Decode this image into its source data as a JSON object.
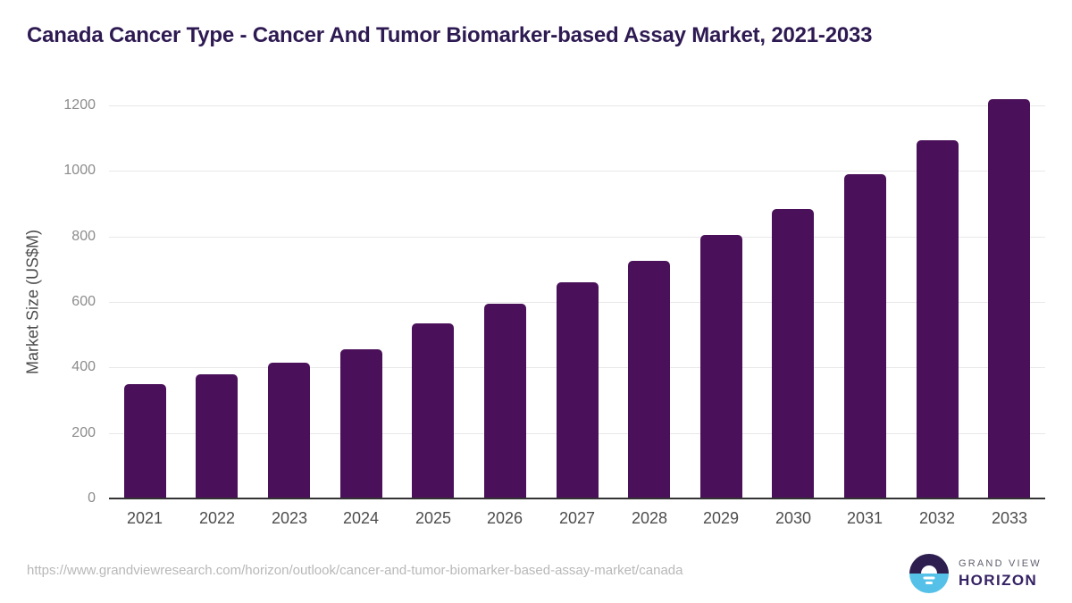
{
  "header": {
    "title": "Canada Cancer Type - Cancer And Tumor Biomarker-based Assay Market, 2021-2033"
  },
  "chart_data": {
    "type": "bar",
    "title": "Canada Cancer Type - Cancer And Tumor Biomarker-based Assay Market, 2021-2033",
    "categories": [
      "2021",
      "2022",
      "2023",
      "2024",
      "2025",
      "2026",
      "2027",
      "2028",
      "2029",
      "2030",
      "2031",
      "2032",
      "2033"
    ],
    "values": [
      350,
      380,
      415,
      455,
      535,
      595,
      660,
      725,
      805,
      885,
      990,
      1095,
      1220
    ],
    "xlabel": "",
    "ylabel": "Market Size (US$M)",
    "ylim": [
      0,
      1250
    ],
    "yticks": [
      0,
      200,
      400,
      600,
      800,
      1000,
      1200
    ],
    "grid": true,
    "legend_position": "none",
    "bar_color": "#4a1059"
  },
  "colors": {
    "title_text": "#2e1a52",
    "bar": "#4a1059",
    "gridline": "#e8e8e8",
    "axis_line": "#333333",
    "y_tick_text": "#8c8c8c",
    "x_tick_text": "#4d4d4d",
    "axis_title_text": "#4d4d4d",
    "url_text": "#b8b8b8",
    "logo_circle_top": "#2e1e4f",
    "logo_circle_bottom": "#56c1e8",
    "brand_name_text": "#5f5f6e",
    "brand_product_text": "#352263"
  },
  "footer": {
    "source_url": "https://www.grandviewresearch.com/horizon/outlook/cancer-and-tumor-biomarker-based-assay-market/canada",
    "brand": {
      "name": "GRAND VIEW",
      "product": "HORIZON"
    }
  }
}
